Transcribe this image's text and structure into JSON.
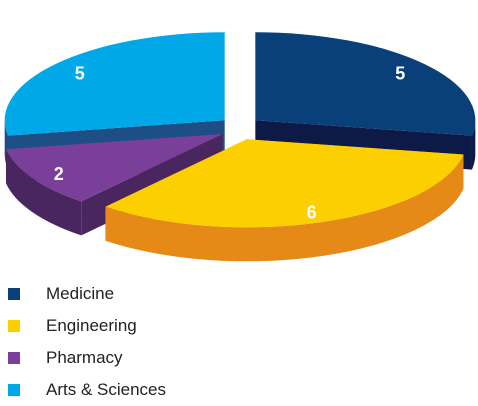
{
  "chart_data": {
    "type": "pie",
    "style": "3d-exploded",
    "title": "",
    "series": [
      {
        "name": "Medicine",
        "value": 5,
        "color": "#0a4079",
        "side_color": "#0d1a47"
      },
      {
        "name": "Engineering",
        "value": 6,
        "color": "#fcd000",
        "side_color": "#e58a16"
      },
      {
        "name": "Pharmacy",
        "value": 2,
        "color": "#7a3f98",
        "side_color": "#4a2660"
      },
      {
        "name": "Arts & Sciences",
        "value": 5,
        "color": "#00a8e8",
        "side_color": "#1d4e86"
      }
    ],
    "legend_position": "bottom-left",
    "data_labels": true
  }
}
